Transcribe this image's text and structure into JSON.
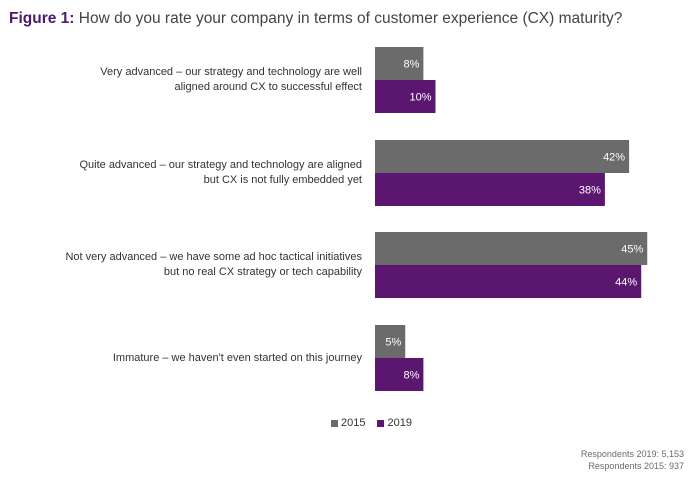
{
  "title": {
    "figure_label": "Figure 1:",
    "question": "How do you rate your company in terms of customer experience (CX) maturity?"
  },
  "legend": [
    {
      "name": "2015",
      "color": "#6b6b6b"
    },
    {
      "name": "2019",
      "color": "#5b1670"
    }
  ],
  "footnotes": [
    "Respondents 2019: 5,153",
    "Respondents 2015: 937"
  ],
  "chart_data": {
    "type": "bar",
    "orientation": "horizontal",
    "categories": [
      [
        "Very advanced – our strategy and technology are well",
        "aligned around CX to successful effect"
      ],
      [
        "Quite advanced – our strategy and technology are aligned",
        "but CX is not fully embedded yet"
      ],
      [
        "Not very advanced – we have some ad hoc tactical initiatives",
        "but no real CX strategy or tech capability"
      ],
      [
        "Immature – we haven't even started on this journey"
      ]
    ],
    "series": [
      {
        "name": "2015",
        "color": "#6b6b6b",
        "values": [
          8,
          42,
          45,
          5
        ]
      },
      {
        "name": "2019",
        "color": "#5b1670",
        "values": [
          10,
          38,
          44,
          8
        ]
      }
    ],
    "unit": "%",
    "legend_position": "bottom-center"
  }
}
